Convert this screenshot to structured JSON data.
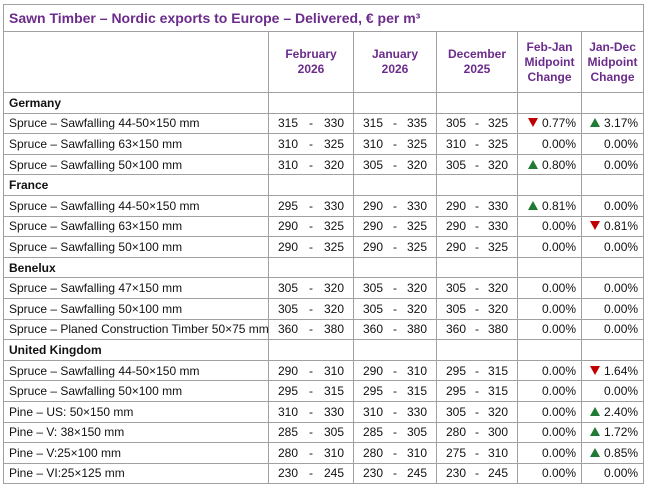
{
  "title": "Sawn Timber – Nordic exports to Europe – Delivered, € per m³",
  "headers": [
    "February 2026",
    "January 2026",
    "December 2025",
    "Feb-Jan Midpoint Change",
    "Jan-Dec Midpoint Change"
  ],
  "range_separator": "-",
  "sections": [
    {
      "name": "Germany",
      "rows": [
        {
          "label": "Spruce – Sawfalling 44-50×150 mm",
          "ranges": [
            [
              "315",
              "330"
            ],
            [
              "315",
              "335"
            ],
            [
              "305",
              "325"
            ]
          ],
          "changes": [
            {
              "direction": "down",
              "text": "0.77%"
            },
            {
              "direction": "up",
              "text": "3.17%"
            }
          ]
        },
        {
          "label": "Spruce – Sawfalling 63×150 mm",
          "ranges": [
            [
              "310",
              "325"
            ],
            [
              "310",
              "325"
            ],
            [
              "310",
              "325"
            ]
          ],
          "changes": [
            {
              "text": "0.00%"
            },
            {
              "text": "0.00%"
            }
          ]
        },
        {
          "label": "Spruce – Sawfalling 50×100 mm",
          "ranges": [
            [
              "310",
              "320"
            ],
            [
              "305",
              "320"
            ],
            [
              "305",
              "320"
            ]
          ],
          "changes": [
            {
              "direction": "up",
              "text": "0.80%"
            },
            {
              "text": "0.00%"
            }
          ]
        }
      ]
    },
    {
      "name": "France",
      "rows": [
        {
          "label": "Spruce – Sawfalling 44-50×150 mm",
          "ranges": [
            [
              "295",
              "330"
            ],
            [
              "290",
              "330"
            ],
            [
              "290",
              "330"
            ]
          ],
          "changes": [
            {
              "direction": "up",
              "text": "0.81%"
            },
            {
              "text": "0.00%"
            }
          ]
        },
        {
          "label": "Spruce – Sawfalling 63×150 mm",
          "ranges": [
            [
              "290",
              "325"
            ],
            [
              "290",
              "325"
            ],
            [
              "290",
              "330"
            ]
          ],
          "changes": [
            {
              "text": "0.00%"
            },
            {
              "direction": "down",
              "text": "0.81%"
            }
          ]
        },
        {
          "label": "Spruce – Sawfalling 50×100 mm",
          "ranges": [
            [
              "290",
              "325"
            ],
            [
              "290",
              "325"
            ],
            [
              "290",
              "325"
            ]
          ],
          "changes": [
            {
              "text": "0.00%"
            },
            {
              "text": "0.00%"
            }
          ]
        }
      ]
    },
    {
      "name": "Benelux",
      "rows": [
        {
          "label": "Spruce – Sawfalling 47×150 mm",
          "ranges": [
            [
              "305",
              "320"
            ],
            [
              "305",
              "320"
            ],
            [
              "305",
              "320"
            ]
          ],
          "changes": [
            {
              "text": "0.00%"
            },
            {
              "text": "0.00%"
            }
          ]
        },
        {
          "label": "Spruce – Sawfalling 50×100 mm",
          "ranges": [
            [
              "305",
              "320"
            ],
            [
              "305",
              "320"
            ],
            [
              "305",
              "320"
            ]
          ],
          "changes": [
            {
              "text": "0.00%"
            },
            {
              "text": "0.00%"
            }
          ]
        },
        {
          "label": "Spruce – Planed Construction Timber 50×75 mm",
          "ranges": [
            [
              "360",
              "380"
            ],
            [
              "360",
              "380"
            ],
            [
              "360",
              "380"
            ]
          ],
          "changes": [
            {
              "text": "0.00%"
            },
            {
              "text": "0.00%"
            }
          ]
        }
      ]
    },
    {
      "name": "United Kingdom",
      "rows": [
        {
          "label": "Spruce – Sawfalling 44-50×150 mm",
          "ranges": [
            [
              "290",
              "310"
            ],
            [
              "290",
              "310"
            ],
            [
              "295",
              "315"
            ]
          ],
          "changes": [
            {
              "text": "0.00%"
            },
            {
              "direction": "down",
              "text": "1.64%"
            }
          ]
        },
        {
          "label": "Spruce – Sawfalling 50×100 mm",
          "ranges": [
            [
              "295",
              "315"
            ],
            [
              "295",
              "315"
            ],
            [
              "295",
              "315"
            ]
          ],
          "changes": [
            {
              "text": "0.00%"
            },
            {
              "text": "0.00%"
            }
          ]
        },
        {
          "label": "Pine – US: 50×150 mm",
          "ranges": [
            [
              "310",
              "330"
            ],
            [
              "310",
              "330"
            ],
            [
              "305",
              "320"
            ]
          ],
          "changes": [
            {
              "text": "0.00%"
            },
            {
              "direction": "up",
              "text": "2.40%"
            }
          ]
        },
        {
          "label": "Pine – V: 38×150 mm",
          "ranges": [
            [
              "285",
              "305"
            ],
            [
              "285",
              "305"
            ],
            [
              "280",
              "300"
            ]
          ],
          "changes": [
            {
              "text": "0.00%"
            },
            {
              "direction": "up",
              "text": "1.72%"
            }
          ]
        },
        {
          "label": "Pine – V:25×100 mm",
          "ranges": [
            [
              "280",
              "310"
            ],
            [
              "280",
              "310"
            ],
            [
              "275",
              "310"
            ]
          ],
          "changes": [
            {
              "text": "0.00%"
            },
            {
              "direction": "up",
              "text": "0.85%"
            }
          ]
        },
        {
          "label": "Pine – VI:25×125 mm",
          "ranges": [
            [
              "230",
              "245"
            ],
            [
              "230",
              "245"
            ],
            [
              "230",
              "245"
            ]
          ],
          "changes": [
            {
              "text": "0.00%"
            },
            {
              "text": "0.00%"
            }
          ]
        }
      ]
    }
  ]
}
